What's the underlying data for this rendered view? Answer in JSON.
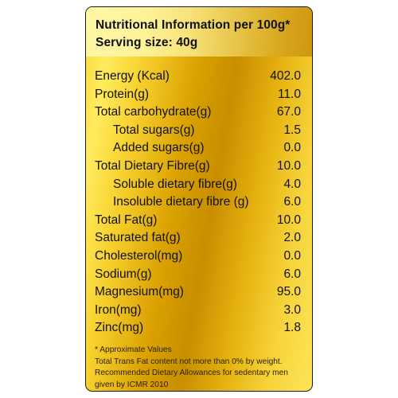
{
  "header": {
    "title": "Nutritional Information per 100g*",
    "serving": "Serving size: 40g"
  },
  "nutrients": [
    {
      "label": "Energy (Kcal)",
      "value": "402.0",
      "indent": false
    },
    {
      "label": "Protein(g)",
      "value": "11.0",
      "indent": false
    },
    {
      "label": "Total carbohydrate(g)",
      "value": "67.0",
      "indent": false
    },
    {
      "label": "Total sugars(g)",
      "value": "1.5",
      "indent": true
    },
    {
      "label": "Added sugars(g)",
      "value": "0.0",
      "indent": true
    },
    {
      "label": "Total Dietary Fibre(g)",
      "value": "10.0",
      "indent": false
    },
    {
      "label": "Soluble dietary fibre(g)",
      "value": "4.0",
      "indent": true
    },
    {
      "label": "Insoluble dietary fibre (g)",
      "value": "6.0",
      "indent": true
    },
    {
      "label": "Total Fat(g)",
      "value": "10.0",
      "indent": false
    },
    {
      "label": "Saturated fat(g)",
      "value": "2.0",
      "indent": false
    },
    {
      "label": "Cholesterol(mg)",
      "value": "0.0",
      "indent": false
    },
    {
      "label": "Sodium(g)",
      "value": "6.0",
      "indent": false
    },
    {
      "label": "Magnesium(mg)",
      "value": "95.0",
      "indent": false
    },
    {
      "label": "Iron(mg)",
      "value": "3.0",
      "indent": false
    },
    {
      "label": "Zinc(mg)",
      "value": "1.8",
      "indent": false
    }
  ],
  "footnotes": [
    "* Approximate Values",
    "Total Trans Fat content not more than 0% by weight.",
    "Recommended Dietary Allowances for sedentary men",
    "given by ICMR 2010"
  ]
}
